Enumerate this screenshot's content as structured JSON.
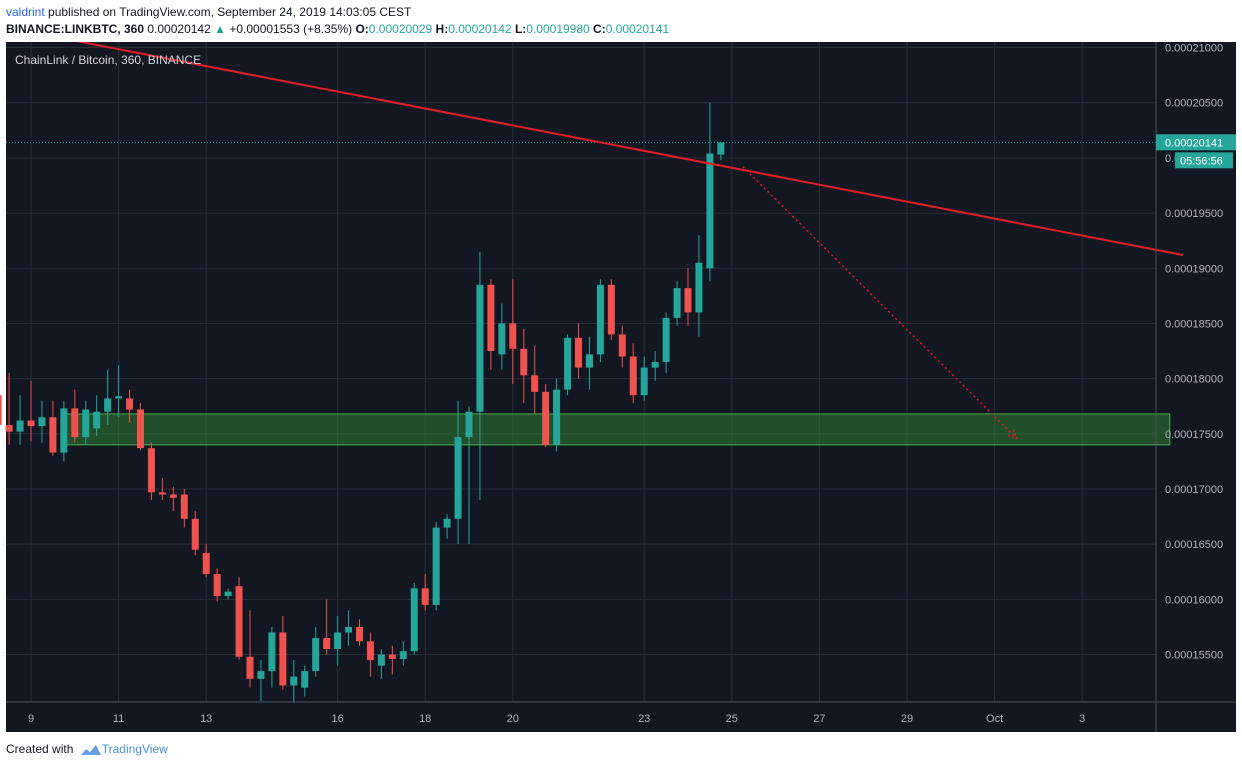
{
  "header": {
    "user": "valdrint",
    "published_text": " published on TradingView.com, September 24, 2019 14:03:05 CEST",
    "symbol": "BINANCE:LINKBTC, 360",
    "last": "0.00020142",
    "change_arrow": "▲",
    "change": "+0.00001553 (+8.35%)",
    "o_label": "O:",
    "o_value": "0.00020029",
    "h_label": "H:",
    "h_value": "0.00020142",
    "l_label": "L:",
    "l_value": "0.00019980",
    "c_label": "C:",
    "c_value": "0.00020141"
  },
  "footer": {
    "created_with": "Created with",
    "brand": "TradingView"
  },
  "colors": {
    "background": "#131722",
    "grid": "#2a2e39",
    "up": "#26a69a",
    "down": "#ef5350",
    "resistance_line": "#e31e24",
    "support_zone": "#2e7d32"
  },
  "chart_data": {
    "type": "candlestick",
    "title": "ChainLink / Bitcoin, 360, BINANCE",
    "y_axis_labels": [
      "0.00021000",
      "0.00020500",
      "0.00020000",
      "0.00019500",
      "0.00019000",
      "0.00018500",
      "0.00018000",
      "0.00017500",
      "0.00017000",
      "0.00016500",
      "0.00016000",
      "0.00015500"
    ],
    "y_label_values": [
      0.00021,
      0.000205,
      0.0002,
      0.000195,
      0.00019,
      0.000185,
      0.00018,
      0.000175,
      0.00017,
      0.000165,
      0.00016,
      0.000155
    ],
    "ylim": [
      0.0001507,
      0.0002105
    ],
    "x_axis_labels": [
      {
        "label": "9",
        "day": 9
      },
      {
        "label": "11",
        "day": 11
      },
      {
        "label": "13",
        "day": 13
      },
      {
        "label": "16",
        "day": 16
      },
      {
        "label": "18",
        "day": 18
      },
      {
        "label": "20",
        "day": 20
      },
      {
        "label": "23",
        "day": 23
      },
      {
        "label": "25",
        "day": 25
      },
      {
        "label": "27",
        "day": 27
      },
      {
        "label": "29",
        "day": 29
      },
      {
        "label": "Oct",
        "day": 31
      },
      {
        "label": "3",
        "day": 33
      }
    ],
    "price_tag": "0.00020141",
    "price_tag_value": 0.00020141,
    "countdown": "05:56:56",
    "candles": [
      {
        "d": 8.0,
        "o": 0.0001715,
        "h": 0.0001838,
        "l": 0.00017,
        "c": 0.0001785
      },
      {
        "d": 8.25,
        "o": 0.0001785,
        "h": 0.0001828,
        "l": 0.0001745,
        "c": 0.0001758
      },
      {
        "d": 8.5,
        "o": 0.0001758,
        "h": 0.0001805,
        "l": 0.000174,
        "c": 0.0001752
      },
      {
        "d": 8.75,
        "o": 0.0001752,
        "h": 0.0001785,
        "l": 0.000174,
        "c": 0.0001762
      },
      {
        "d": 9.0,
        "o": 0.0001762,
        "h": 0.0001798,
        "l": 0.0001743,
        "c": 0.0001757
      },
      {
        "d": 9.25,
        "o": 0.0001757,
        "h": 0.000178,
        "l": 0.0001742,
        "c": 0.0001765
      },
      {
        "d": 9.5,
        "o": 0.0001765,
        "h": 0.000178,
        "l": 0.000173,
        "c": 0.0001733
      },
      {
        "d": 9.75,
        "o": 0.0001733,
        "h": 0.000178,
        "l": 0.0001725,
        "c": 0.0001773
      },
      {
        "d": 10.0,
        "o": 0.0001773,
        "h": 0.000179,
        "l": 0.0001742,
        "c": 0.0001747
      },
      {
        "d": 10.25,
        "o": 0.0001747,
        "h": 0.000178,
        "l": 0.000174,
        "c": 0.0001772
      },
      {
        "d": 10.5,
        "o": 0.0001755,
        "h": 0.0001785,
        "l": 0.0001748,
        "c": 0.000177
      },
      {
        "d": 10.75,
        "o": 0.000177,
        "h": 0.0001808,
        "l": 0.0001758,
        "c": 0.0001782
      },
      {
        "d": 11.0,
        "o": 0.0001782,
        "h": 0.0001812,
        "l": 0.0001765,
        "c": 0.0001784
      },
      {
        "d": 11.25,
        "o": 0.0001782,
        "h": 0.000179,
        "l": 0.000176,
        "c": 0.0001772
      },
      {
        "d": 11.5,
        "o": 0.0001772,
        "h": 0.0001778,
        "l": 0.0001735,
        "c": 0.0001737
      },
      {
        "d": 11.75,
        "o": 0.0001737,
        "h": 0.0001742,
        "l": 0.000169,
        "c": 0.0001697
      },
      {
        "d": 12.0,
        "o": 0.0001697,
        "h": 0.000171,
        "l": 0.000169,
        "c": 0.0001695
      },
      {
        "d": 12.25,
        "o": 0.0001695,
        "h": 0.0001702,
        "l": 0.000168,
        "c": 0.0001692
      },
      {
        "d": 12.5,
        "o": 0.0001695,
        "h": 0.00017,
        "l": 0.0001665,
        "c": 0.0001673
      },
      {
        "d": 12.75,
        "o": 0.0001673,
        "h": 0.000168,
        "l": 0.000164,
        "c": 0.0001645
      },
      {
        "d": 13.0,
        "o": 0.0001642,
        "h": 0.000165,
        "l": 0.000162,
        "c": 0.0001623
      },
      {
        "d": 13.25,
        "o": 0.0001623,
        "h": 0.0001628,
        "l": 0.0001598,
        "c": 0.0001603
      },
      {
        "d": 13.5,
        "o": 0.0001603,
        "h": 0.000161,
        "l": 0.00016,
        "c": 0.0001607
      },
      {
        "d": 13.75,
        "o": 0.0001612,
        "h": 0.000162,
        "l": 0.0001545,
        "c": 0.0001548
      },
      {
        "d": 14.0,
        "o": 0.0001548,
        "h": 0.000159,
        "l": 0.000152,
        "c": 0.0001528
      },
      {
        "d": 14.25,
        "o": 0.0001528,
        "h": 0.0001545,
        "l": 0.0001508,
        "c": 0.0001535
      },
      {
        "d": 14.5,
        "o": 0.0001535,
        "h": 0.0001575,
        "l": 0.000152,
        "c": 0.000157
      },
      {
        "d": 14.75,
        "o": 0.000157,
        "h": 0.0001585,
        "l": 0.0001518,
        "c": 0.0001522
      },
      {
        "d": 15.0,
        "o": 0.0001522,
        "h": 0.0001545,
        "l": 0.0001507,
        "c": 0.000153
      },
      {
        "d": 15.25,
        "o": 0.000152,
        "h": 0.000154,
        "l": 0.0001512,
        "c": 0.0001535
      },
      {
        "d": 15.5,
        "o": 0.0001535,
        "h": 0.0001575,
        "l": 0.000153,
        "c": 0.0001565
      },
      {
        "d": 15.75,
        "o": 0.0001565,
        "h": 0.00016,
        "l": 0.000155,
        "c": 0.0001555
      },
      {
        "d": 16.0,
        "o": 0.0001555,
        "h": 0.0001585,
        "l": 0.000154,
        "c": 0.000157
      },
      {
        "d": 16.25,
        "o": 0.000157,
        "h": 0.000159,
        "l": 0.0001558,
        "c": 0.0001575
      },
      {
        "d": 16.5,
        "o": 0.0001575,
        "h": 0.0001582,
        "l": 0.0001558,
        "c": 0.0001562
      },
      {
        "d": 16.75,
        "o": 0.0001562,
        "h": 0.000157,
        "l": 0.000153,
        "c": 0.0001545
      },
      {
        "d": 17.0,
        "o": 0.000154,
        "h": 0.0001555,
        "l": 0.0001528,
        "c": 0.000155
      },
      {
        "d": 17.25,
        "o": 0.000155,
        "h": 0.0001558,
        "l": 0.0001532,
        "c": 0.0001546
      },
      {
        "d": 17.5,
        "o": 0.0001546,
        "h": 0.0001562,
        "l": 0.000154,
        "c": 0.0001553
      },
      {
        "d": 17.75,
        "o": 0.0001553,
        "h": 0.0001615,
        "l": 0.000155,
        "c": 0.000161
      },
      {
        "d": 18.0,
        "o": 0.000161,
        "h": 0.0001623,
        "l": 0.000159,
        "c": 0.0001595
      },
      {
        "d": 18.25,
        "o": 0.0001595,
        "h": 0.000167,
        "l": 0.000159,
        "c": 0.0001665
      },
      {
        "d": 18.5,
        "o": 0.0001665,
        "h": 0.0001677,
        "l": 0.0001655,
        "c": 0.0001673
      },
      {
        "d": 18.75,
        "o": 0.0001673,
        "h": 0.000178,
        "l": 0.000165,
        "c": 0.0001747
      },
      {
        "d": 19.0,
        "o": 0.0001747,
        "h": 0.0001775,
        "l": 0.000165,
        "c": 0.000177
      },
      {
        "d": 19.25,
        "o": 0.000177,
        "h": 0.0001915,
        "l": 0.000169,
        "c": 0.0001885
      },
      {
        "d": 19.5,
        "o": 0.0001885,
        "h": 0.000189,
        "l": 0.0001808,
        "c": 0.0001825
      },
      {
        "d": 19.75,
        "o": 0.0001822,
        "h": 0.0001868,
        "l": 0.0001808,
        "c": 0.000185
      },
      {
        "d": 20.0,
        "o": 0.000185,
        "h": 0.000189,
        "l": 0.0001795,
        "c": 0.0001827
      },
      {
        "d": 20.25,
        "o": 0.0001827,
        "h": 0.0001845,
        "l": 0.0001778,
        "c": 0.0001803
      },
      {
        "d": 20.5,
        "o": 0.0001803,
        "h": 0.000183,
        "l": 0.0001768,
        "c": 0.0001788
      },
      {
        "d": 20.75,
        "o": 0.0001788,
        "h": 0.0001795,
        "l": 0.0001738,
        "c": 0.000174
      },
      {
        "d": 21.0,
        "o": 0.000174,
        "h": 0.00018,
        "l": 0.0001734,
        "c": 0.000179
      },
      {
        "d": 21.25,
        "o": 0.000179,
        "h": 0.000184,
        "l": 0.0001785,
        "c": 0.0001837
      },
      {
        "d": 21.5,
        "o": 0.0001837,
        "h": 0.000185,
        "l": 0.00018,
        "c": 0.000181
      },
      {
        "d": 21.75,
        "o": 0.000181,
        "h": 0.0001838,
        "l": 0.000179,
        "c": 0.0001822
      },
      {
        "d": 22.0,
        "o": 0.0001822,
        "h": 0.000189,
        "l": 0.0001815,
        "c": 0.0001885
      },
      {
        "d": 22.25,
        "o": 0.0001885,
        "h": 0.000189,
        "l": 0.0001835,
        "c": 0.000184
      },
      {
        "d": 22.5,
        "o": 0.000184,
        "h": 0.0001848,
        "l": 0.000181,
        "c": 0.000182
      },
      {
        "d": 22.75,
        "o": 0.000182,
        "h": 0.0001832,
        "l": 0.0001778,
        "c": 0.0001785
      },
      {
        "d": 23.0,
        "o": 0.0001785,
        "h": 0.000182,
        "l": 0.000178,
        "c": 0.000181
      },
      {
        "d": 23.25,
        "o": 0.000181,
        "h": 0.0001825,
        "l": 0.0001798,
        "c": 0.0001815
      },
      {
        "d": 23.5,
        "o": 0.0001815,
        "h": 0.000186,
        "l": 0.0001805,
        "c": 0.0001855
      },
      {
        "d": 23.75,
        "o": 0.0001855,
        "h": 0.0001888,
        "l": 0.0001848,
        "c": 0.0001882
      },
      {
        "d": 24.0,
        "o": 0.0001882,
        "h": 0.00019,
        "l": 0.0001848,
        "c": 0.000186
      },
      {
        "d": 24.25,
        "o": 0.000186,
        "h": 0.000193,
        "l": 0.0001838,
        "c": 0.0001905
      },
      {
        "d": 24.5,
        "o": 0.00019,
        "h": 0.000205,
        "l": 0.0001888,
        "c": 0.0002004
      },
      {
        "d": 24.75,
        "o": 0.0002003,
        "h": 0.0002014,
        "l": 0.0001998,
        "c": 0.0002014
      }
    ],
    "resistance_line": {
      "from": {
        "day": 9.5,
        "price": 0.000211
      },
      "to": {
        "day": 35.3,
        "price": 0.0001912
      }
    },
    "support_zone": {
      "from_day": 9.7,
      "to_day": 35.0,
      "low": 0.000174,
      "high": 0.0001768
    },
    "projection": {
      "from": {
        "day": 25.25,
        "price": 0.0001992
      },
      "to": {
        "day": 31.5,
        "price": 0.0001746
      }
    },
    "grid": true
  }
}
